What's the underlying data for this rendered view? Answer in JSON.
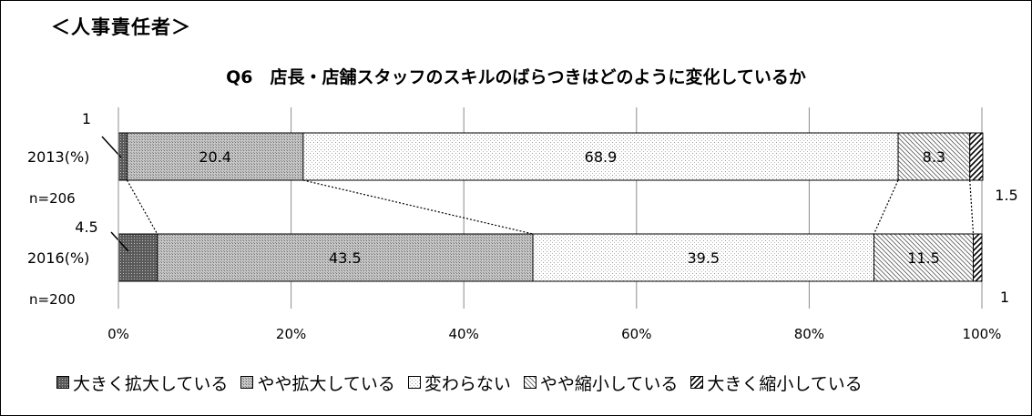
{
  "header": {
    "respondent": "＜人事責任者＞",
    "title": "Q6　店長・店舗スタッフのスキルのばらつきはどのように変化しているか"
  },
  "chart_data": {
    "type": "bar",
    "orientation": "horizontal",
    "stacked": true,
    "percent_stacked": true,
    "xlim": [
      0,
      100
    ],
    "x_ticks": [
      "0%",
      "20%",
      "40%",
      "60%",
      "80%",
      "100%"
    ],
    "grid": true,
    "legend_position": "bottom",
    "categories": [
      {
        "label": "2013(%)",
        "n_label": "n=206"
      },
      {
        "label": "2016(%)",
        "n_label": "n=200"
      }
    ],
    "series": [
      {
        "name": "大きく拡大している",
        "values": [
          1,
          4.5
        ],
        "labels": [
          "1",
          "4.5"
        ],
        "pattern": "dense-dots"
      },
      {
        "name": "やや拡大している",
        "values": [
          20.4,
          43.5
        ],
        "labels": [
          "20.4",
          "43.5"
        ],
        "pattern": "medium-dots"
      },
      {
        "name": "変わらない",
        "values": [
          68.9,
          39.5
        ],
        "labels": [
          "68.9",
          "39.5"
        ],
        "pattern": "light-dots"
      },
      {
        "name": "やや縮小している",
        "values": [
          8.3,
          11.5
        ],
        "labels": [
          "8.3",
          "11.5"
        ],
        "pattern": "thin-diagonal"
      },
      {
        "name": "大きく縮小している",
        "values": [
          1.5,
          1
        ],
        "labels": [
          "1.5",
          "1"
        ],
        "pattern": "bold-diagonal"
      }
    ]
  }
}
